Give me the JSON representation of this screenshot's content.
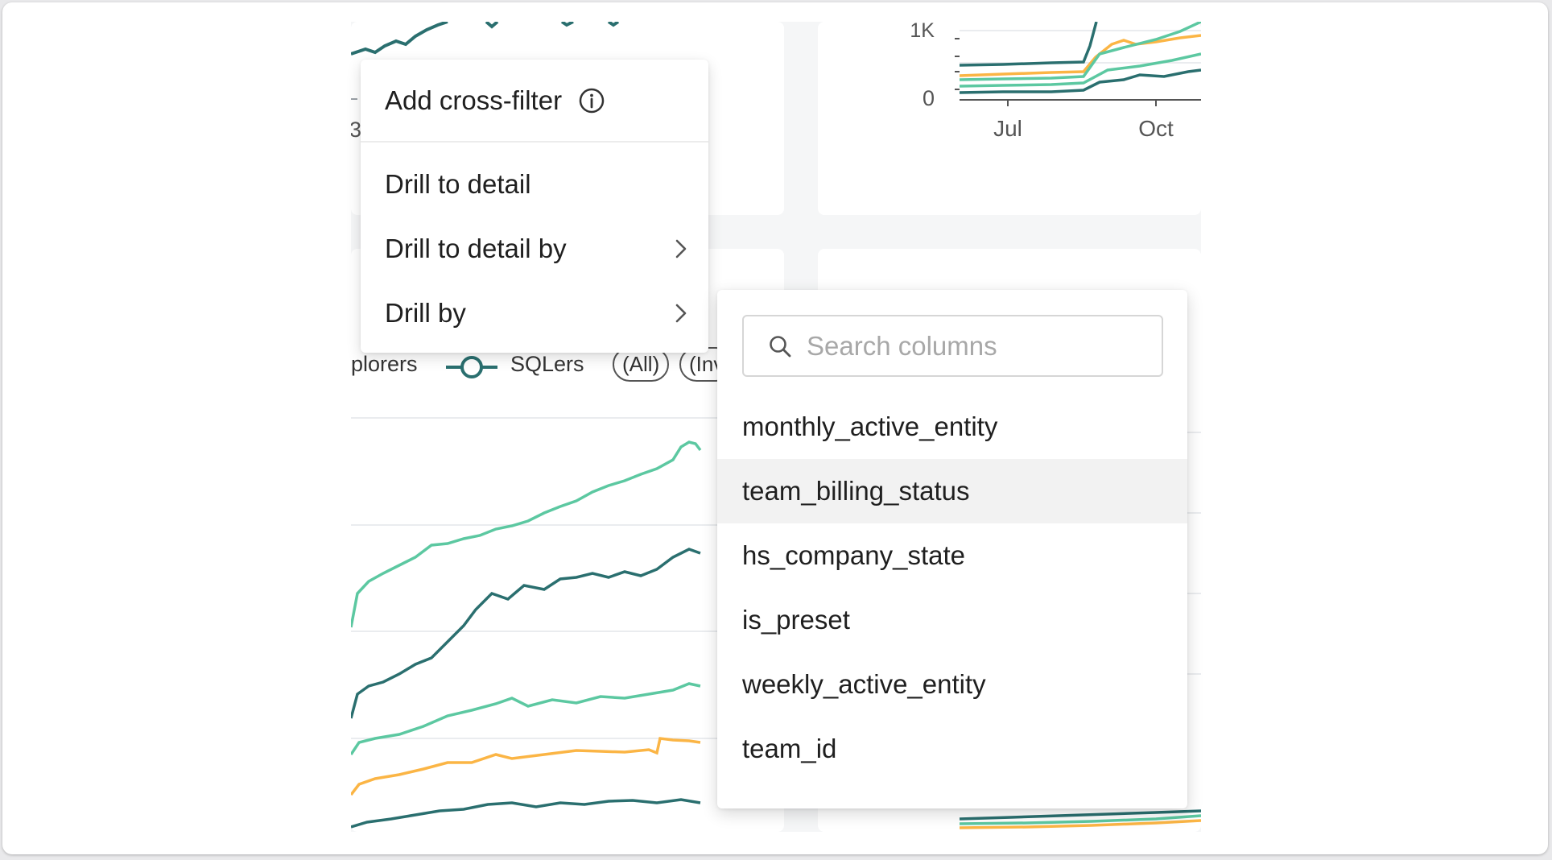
{
  "chart_top_right": {
    "y_ticks": [
      "1K",
      "0"
    ],
    "x_ticks": [
      "Jul",
      "Oct"
    ]
  },
  "chart_left": {
    "partial_tick_label": "3",
    "legend": {
      "item_1": "plorers",
      "item_2": "SQLers",
      "pill_all": "All",
      "pill_inv": "Inv"
    }
  },
  "series_colors": {
    "teal_light": "#5cc8a1",
    "teal_dark": "#2a6f6f",
    "orange": "#fbb545"
  },
  "context_menu": {
    "add_cross_filter": "Add cross-filter",
    "drill_to_detail": "Drill to detail",
    "drill_to_detail_by": "Drill to detail by",
    "drill_by": "Drill by"
  },
  "drill_by_submenu": {
    "search_placeholder": "Search columns",
    "columns": [
      "monthly_active_entity",
      "team_billing_status",
      "hs_company_state",
      "is_preset",
      "weekly_active_entity",
      "team_id"
    ],
    "highlighted_column": "team_billing_status"
  }
}
